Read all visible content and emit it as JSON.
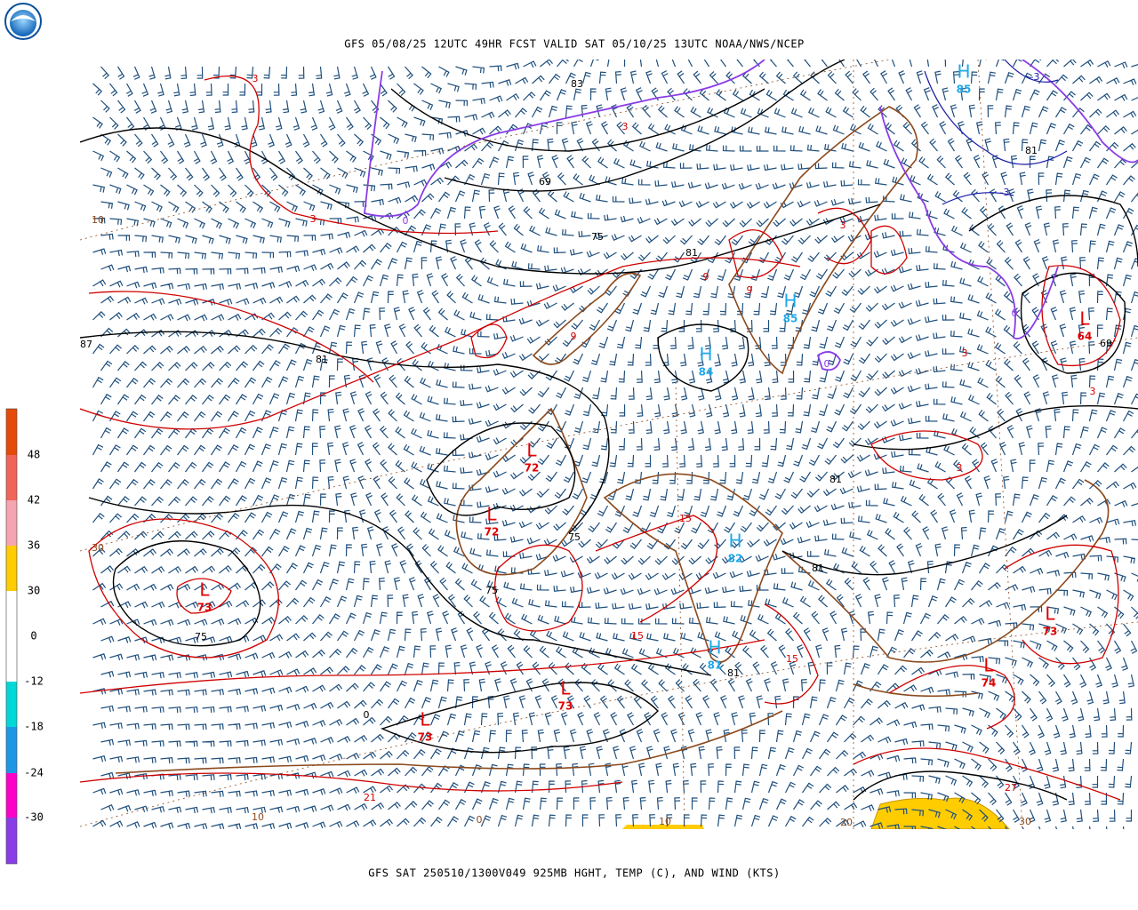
{
  "header": {
    "title": "GFS 05/08/25 12UTC 49HR FCST VALID SAT 05/10/25 13UTC NOAA/NWS/NCEP"
  },
  "footer": {
    "caption": "GFS SAT 250510/1300V049 925MB HGHT, TEMP (C), AND WIND (KTS)"
  },
  "legend": {
    "labels": [
      "48",
      "42",
      "36",
      "30",
      "0",
      "-12",
      "-18",
      "-24",
      "-30"
    ]
  },
  "map": {
    "centers": [
      {
        "label": "L",
        "value": "73"
      },
      {
        "label": "L",
        "value": "72"
      },
      {
        "label": "L",
        "value": "72"
      },
      {
        "label": "L",
        "value": "73"
      },
      {
        "label": "L",
        "value": "73"
      },
      {
        "label": "L",
        "value": "64"
      },
      {
        "label": "L",
        "value": "73"
      },
      {
        "label": "L",
        "value": "74"
      },
      {
        "label": "H",
        "value": "85"
      },
      {
        "label": "H",
        "value": "84"
      },
      {
        "label": "H",
        "value": "85"
      },
      {
        "label": "H",
        "value": "82"
      },
      {
        "label": "H",
        "value": "81"
      }
    ],
    "height_labels": [
      "69",
      "75",
      "81",
      "81",
      "87",
      "75",
      "75",
      "75",
      "81",
      "81",
      "81",
      "81",
      "69",
      "83",
      "0"
    ],
    "temp_labels": [
      "3",
      "3",
      "3",
      "9",
      "9",
      "9",
      "3",
      "3",
      "3",
      "3",
      "15",
      "15",
      "15",
      "21",
      "27"
    ],
    "cold_labels": [
      "0",
      "0",
      "0",
      "-3",
      "-3"
    ],
    "grid_labels": [
      "10",
      "30",
      "10",
      "0",
      "10",
      "20",
      "30"
    ]
  }
}
